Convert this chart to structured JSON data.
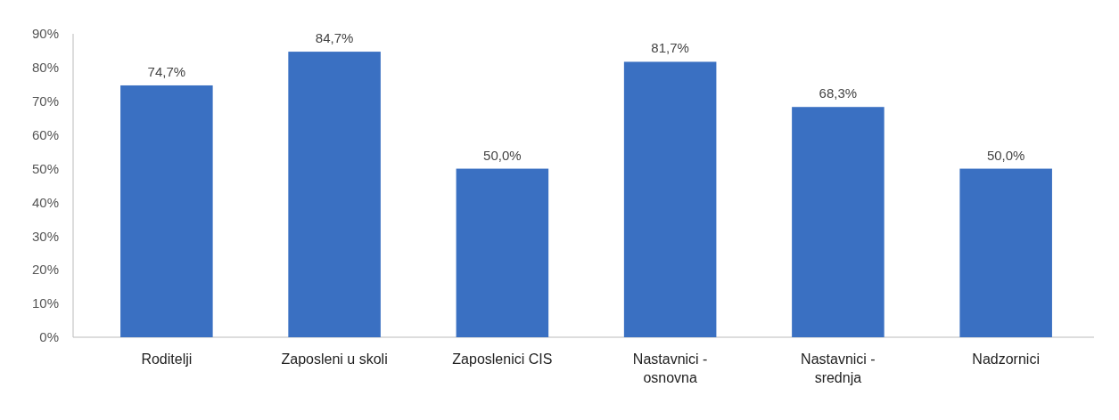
{
  "chart_data": {
    "type": "bar",
    "categories": [
      "Roditelji",
      "Zaposleni u skoli",
      "Zaposlenici CIS",
      "Nastavnici - osnovna",
      "Nastavnici - srednja",
      "Nadzornici"
    ],
    "values": [
      74.7,
      84.7,
      50.0,
      81.7,
      68.3,
      50.0
    ],
    "value_labels": [
      "74,7%",
      "84,7%",
      "50,0%",
      "81,7%",
      "68,3%",
      "50,0%"
    ],
    "color": "#3a70c2",
    "ylim": [
      0,
      90
    ],
    "yticks": [
      {
        "value": 0,
        "label": "0%"
      },
      {
        "value": 10,
        "label": "10%"
      },
      {
        "value": 20,
        "label": "20%"
      },
      {
        "value": 30,
        "label": "30%"
      },
      {
        "value": 40,
        "label": "40%"
      },
      {
        "value": 50,
        "label": "50%"
      },
      {
        "value": 60,
        "label": "60%"
      },
      {
        "value": 70,
        "label": "70%"
      },
      {
        "value": 80,
        "label": "80%"
      },
      {
        "value": 90,
        "label": "90%"
      }
    ],
    "grid": false
  }
}
